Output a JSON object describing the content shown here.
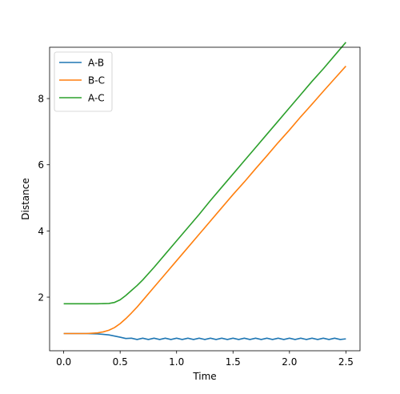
{
  "chart_data": {
    "type": "line",
    "title": "",
    "xlabel": "Time",
    "ylabel": "Distance",
    "xlim": [
      -0.125,
      2.625
    ],
    "ylim": [
      0.38,
      9.55
    ],
    "xticks": [
      0.0,
      0.5,
      1.0,
      1.5,
      2.0,
      2.5
    ],
    "xtick_labels": [
      "0.0",
      "0.5",
      "1.0",
      "1.5",
      "2.0",
      "2.5"
    ],
    "yticks": [
      2,
      4,
      6,
      8
    ],
    "ytick_labels": [
      "2",
      "4",
      "6",
      "8"
    ],
    "grid": false,
    "legend_position": "top-left",
    "series": [
      {
        "name": "A-B",
        "color": "#1f77b4",
        "x": [
          0.0,
          0.1,
          0.2,
          0.3,
          0.4,
          0.5,
          0.55,
          0.6,
          0.65,
          0.7,
          0.75,
          0.8,
          0.85,
          0.9,
          0.95,
          1.0,
          1.05,
          1.1,
          1.15,
          1.2,
          1.25,
          1.3,
          1.35,
          1.4,
          1.45,
          1.5,
          1.55,
          1.6,
          1.65,
          1.7,
          1.75,
          1.8,
          1.85,
          1.9,
          1.95,
          2.0,
          2.05,
          2.1,
          2.15,
          2.2,
          2.25,
          2.3,
          2.35,
          2.4,
          2.45,
          2.5
        ],
        "y": [
          0.9,
          0.9,
          0.9,
          0.89,
          0.86,
          0.79,
          0.75,
          0.76,
          0.72,
          0.76,
          0.72,
          0.76,
          0.72,
          0.76,
          0.72,
          0.76,
          0.72,
          0.76,
          0.72,
          0.76,
          0.72,
          0.76,
          0.72,
          0.76,
          0.72,
          0.76,
          0.72,
          0.76,
          0.72,
          0.76,
          0.72,
          0.76,
          0.72,
          0.76,
          0.72,
          0.76,
          0.72,
          0.76,
          0.72,
          0.76,
          0.72,
          0.76,
          0.72,
          0.76,
          0.72,
          0.74
        ]
      },
      {
        "name": "B-C",
        "color": "#ff7f0e",
        "x": [
          0.0,
          0.1,
          0.2,
          0.3,
          0.35,
          0.4,
          0.45,
          0.5,
          0.55,
          0.6,
          0.65,
          0.7,
          0.8,
          0.9,
          1.0,
          1.1,
          1.2,
          1.3,
          1.4,
          1.5,
          1.6,
          1.7,
          1.8,
          1.9,
          2.0,
          2.1,
          2.2,
          2.3,
          2.4,
          2.5
        ],
        "y": [
          0.9,
          0.9,
          0.9,
          0.92,
          0.95,
          1.0,
          1.08,
          1.2,
          1.35,
          1.52,
          1.7,
          1.9,
          2.3,
          2.7,
          3.1,
          3.5,
          3.9,
          4.3,
          4.7,
          5.1,
          5.48,
          5.88,
          6.27,
          6.67,
          7.05,
          7.45,
          7.83,
          8.22,
          8.6,
          8.98
        ]
      },
      {
        "name": "A-C",
        "color": "#2ca02c",
        "x": [
          0.0,
          0.1,
          0.2,
          0.3,
          0.4,
          0.45,
          0.5,
          0.55,
          0.6,
          0.65,
          0.7,
          0.8,
          0.9,
          1.0,
          1.1,
          1.2,
          1.3,
          1.4,
          1.5,
          1.6,
          1.7,
          1.8,
          1.9,
          2.0,
          2.1,
          2.2,
          2.3,
          2.4,
          2.5
        ],
        "y": [
          1.8,
          1.8,
          1.8,
          1.8,
          1.81,
          1.84,
          1.92,
          2.05,
          2.2,
          2.35,
          2.52,
          2.9,
          3.3,
          3.7,
          4.1,
          4.5,
          4.92,
          5.32,
          5.72,
          6.12,
          6.52,
          6.92,
          7.32,
          7.72,
          8.12,
          8.52,
          8.9,
          9.3,
          9.7
        ]
      }
    ]
  }
}
